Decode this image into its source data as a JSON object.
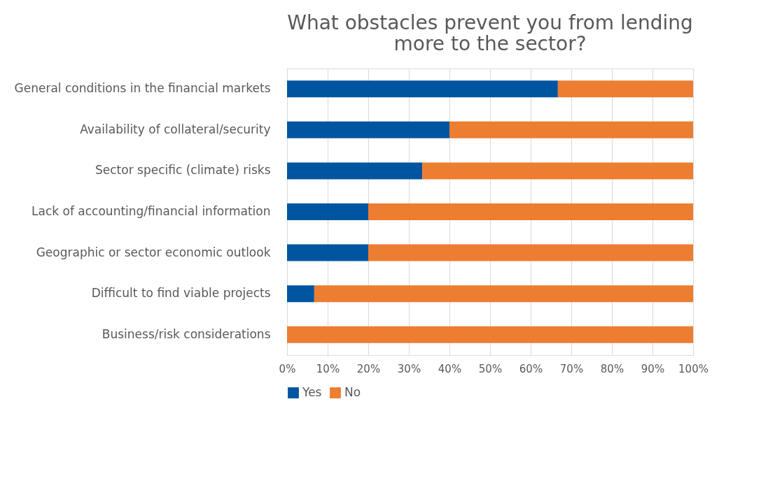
{
  "chart_data": {
    "type": "bar",
    "orientation": "horizontal",
    "stacked": true,
    "title": "What obstacles prevent you from lending more to the sector?",
    "categories": [
      "General conditions in the financial markets",
      "Availability of collateral/security",
      "Sector specific (climate) risks",
      "Lack of accounting/financial information",
      "Geographic or sector economic outlook",
      "Difficult to find viable projects",
      "Business/risk considerations"
    ],
    "series": [
      {
        "name": "Yes",
        "color": "#0055a0",
        "values": [
          66.7,
          40,
          33.3,
          20,
          20,
          6.7,
          0
        ]
      },
      {
        "name": "No",
        "color": "#ed7d31",
        "values": [
          33.3,
          60,
          66.7,
          80,
          80,
          93.3,
          100
        ]
      }
    ],
    "xlim": [
      0,
      100
    ],
    "xticks": [
      {
        "value": 0,
        "label": "0%"
      },
      {
        "value": 10,
        "label": "10%"
      },
      {
        "value": 20,
        "label": "20%"
      },
      {
        "value": 30,
        "label": "30%"
      },
      {
        "value": 40,
        "label": "40%"
      },
      {
        "value": 50,
        "label": "50%"
      },
      {
        "value": 60,
        "label": "60%"
      },
      {
        "value": 70,
        "label": "70%"
      },
      {
        "value": 80,
        "label": "80%"
      },
      {
        "value": 90,
        "label": "90%"
      },
      {
        "value": 100,
        "label": "100%"
      }
    ],
    "grid": "x",
    "legend": "bottom"
  }
}
